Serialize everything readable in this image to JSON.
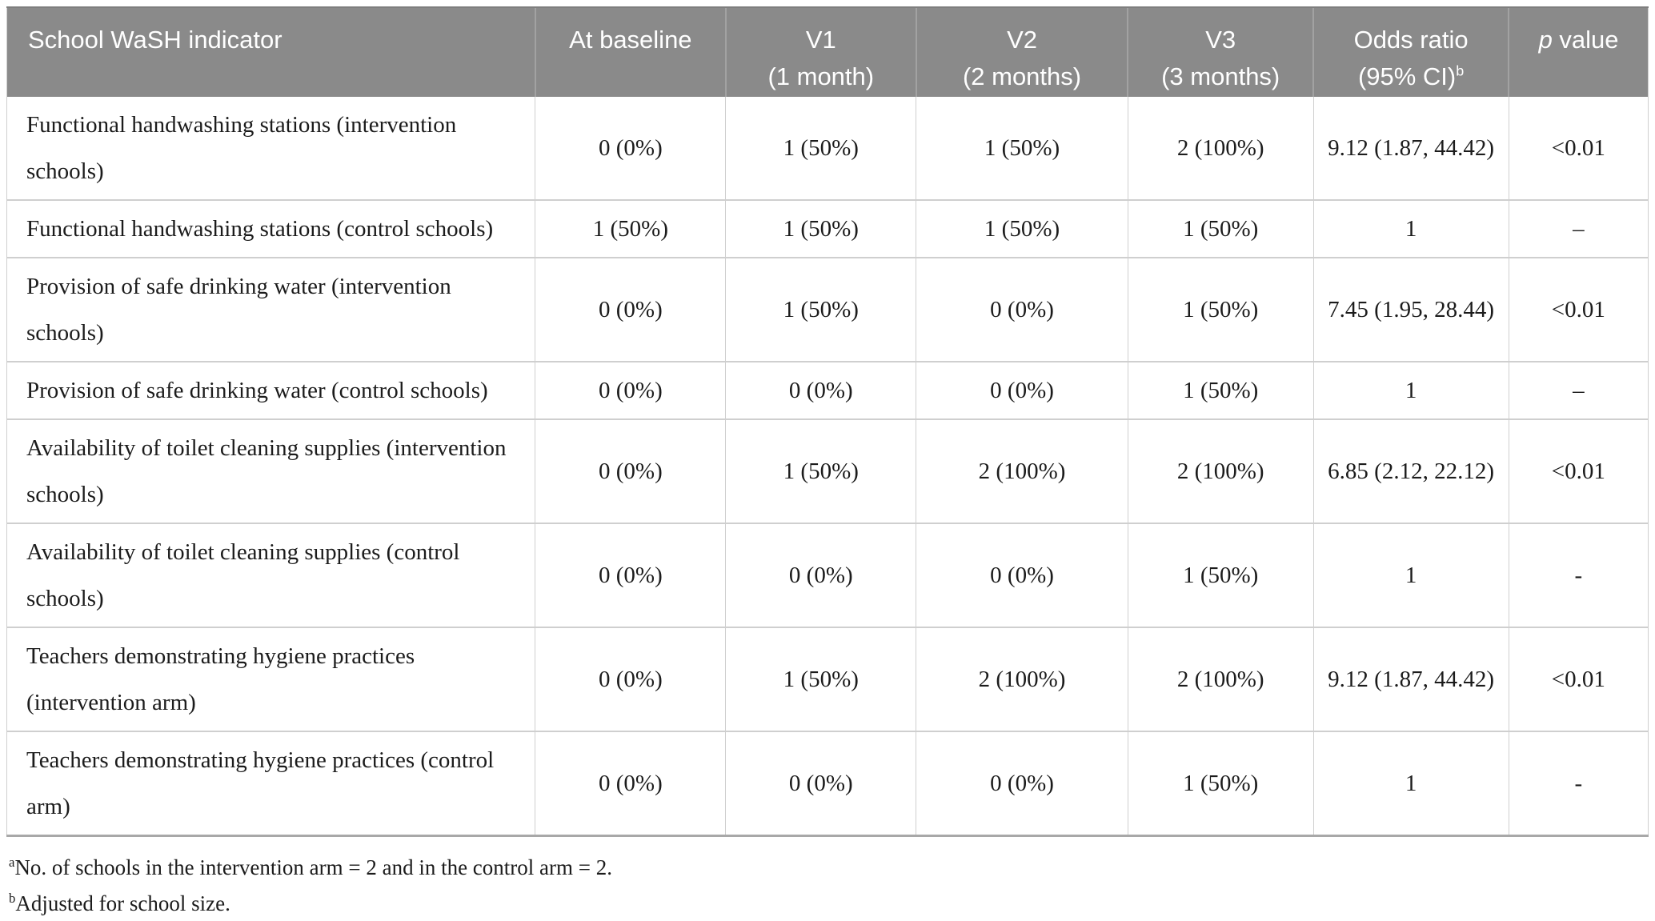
{
  "colors": {
    "header_bg": "#8a8a8a",
    "header_text": "#ffffff",
    "row_border": "#cfcfcf",
    "body_text": "#1c1c1c"
  },
  "table": {
    "headers": [
      {
        "label": "School WaSH indicator"
      },
      {
        "label": "At baseline"
      },
      {
        "line1": "V1",
        "line2": "(1 month)"
      },
      {
        "line1": "V2",
        "line2": "(2 months)"
      },
      {
        "line1": "V3",
        "line2": "(3 months)"
      },
      {
        "line1": "Odds ratio",
        "line2": "(95% CI)",
        "sup": "b"
      },
      {
        "italic": "p",
        "rest": " value"
      }
    ],
    "rows": [
      {
        "indicator": "Functional handwashing stations (intervention schools)",
        "baseline": "0 (0%)",
        "v1": "1 (50%)",
        "v2": "1 (50%)",
        "v3": "2 (100%)",
        "odds_ratio": "9.12 (1.87, 44.42)",
        "p_value": "<0.01"
      },
      {
        "indicator": "Functional handwashing stations (control schools)",
        "baseline": "1 (50%)",
        "v1": "1 (50%)",
        "v2": "1 (50%)",
        "v3": "1 (50%)",
        "odds_ratio": "1",
        "p_value": "–"
      },
      {
        "indicator": "Provision of safe drinking water (intervention schools)",
        "baseline": "0 (0%)",
        "v1": "1 (50%)",
        "v2": "0 (0%)",
        "v3": "1 (50%)",
        "odds_ratio": "7.45 (1.95, 28.44)",
        "p_value": "<0.01"
      },
      {
        "indicator": "Provision of safe drinking water (control schools)",
        "baseline": "0 (0%)",
        "v1": "0 (0%)",
        "v2": "0 (0%)",
        "v3": "1 (50%)",
        "odds_ratio": "1",
        "p_value": "–"
      },
      {
        "indicator": "Availability of toilet cleaning supplies (intervention schools)",
        "baseline": "0 (0%)",
        "v1": "1 (50%)",
        "v2": "2 (100%)",
        "v3": "2 (100%)",
        "odds_ratio": "6.85 (2.12, 22.12)",
        "p_value": "<0.01"
      },
      {
        "indicator": "Availability of toilet cleaning supplies (control schools)",
        "baseline": "0 (0%)",
        "v1": "0 (0%)",
        "v2": "0 (0%)",
        "v3": "1 (50%)",
        "odds_ratio": "1",
        "p_value": "-"
      },
      {
        "indicator": "Teachers demonstrating hygiene practices (intervention arm)",
        "baseline": "0 (0%)",
        "v1": "1 (50%)",
        "v2": "2 (100%)",
        "v3": "2 (100%)",
        "odds_ratio": "9.12 (1.87, 44.42)",
        "p_value": "<0.01"
      },
      {
        "indicator": "Teachers demonstrating hygiene practices (control arm)",
        "baseline": "0 (0%)",
        "v1": "0 (0%)",
        "v2": "0 (0%)",
        "v3": "1 (50%)",
        "odds_ratio": "1",
        "p_value": "-"
      }
    ]
  },
  "footnotes": [
    {
      "sup": "a",
      "text": "No. of schools in the intervention arm = 2 and in the control arm = 2."
    },
    {
      "sup": "b",
      "text": "Adjusted for school size."
    }
  ]
}
